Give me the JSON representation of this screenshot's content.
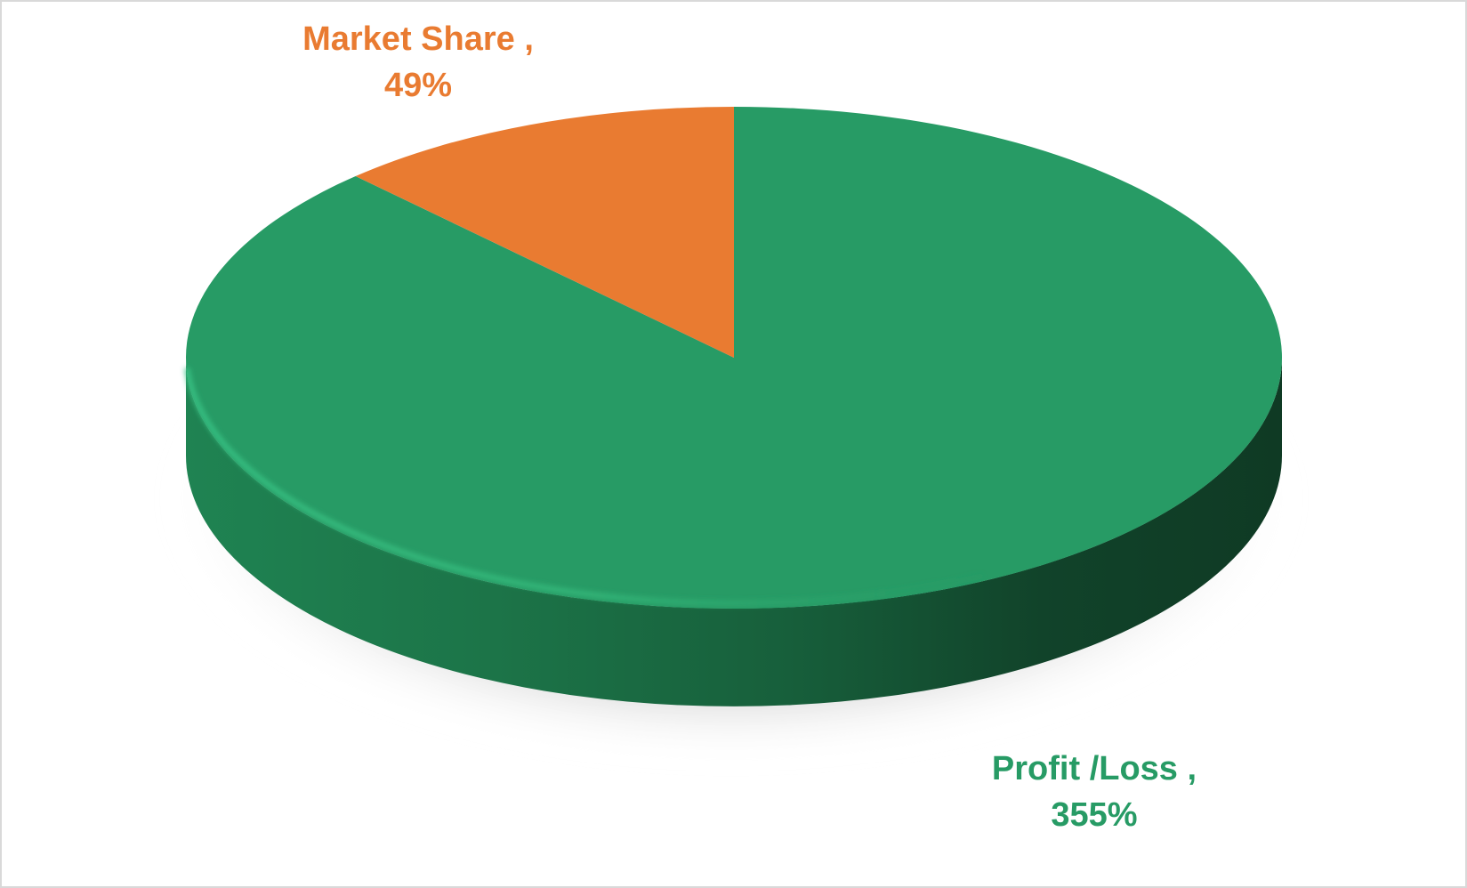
{
  "chart_data": {
    "type": "pie",
    "style": "3d",
    "slices": [
      {
        "category": "Profit /Loss ,",
        "value_label": "355%",
        "value": 355,
        "color": "#279b65"
      },
      {
        "category": "Market Share ,",
        "value_label": "49%",
        "value": 49,
        "color": "#e97b31"
      }
    ],
    "legend": "none",
    "title": ""
  }
}
